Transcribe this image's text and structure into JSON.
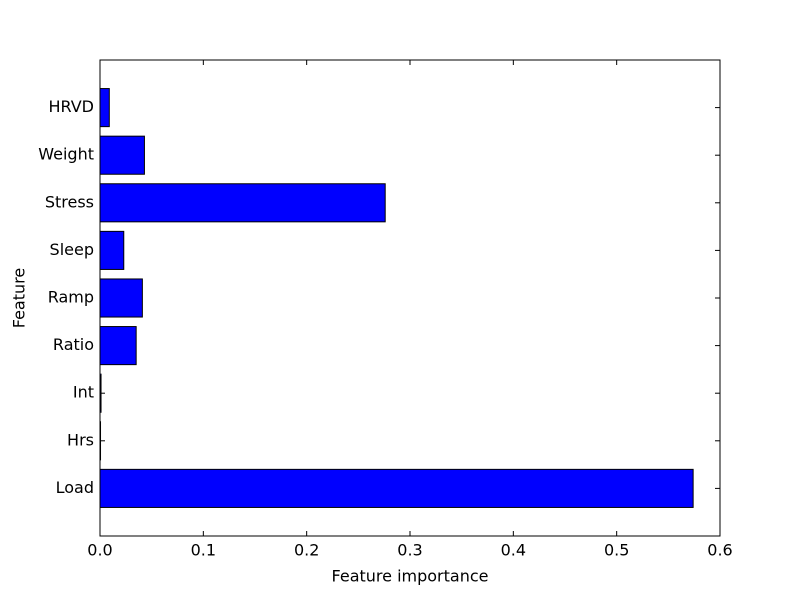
{
  "chart_data": {
    "type": "barh",
    "xlabel": "Feature importance",
    "ylabel": "Feature",
    "categories": [
      "Load",
      "Hrs",
      "Int",
      "Ratio",
      "Ramp",
      "Sleep",
      "Stress",
      "Weight",
      "HRVD"
    ],
    "values": [
      0.574,
      0.0005,
      0.001,
      0.035,
      0.041,
      0.023,
      0.276,
      0.043,
      0.009
    ],
    "color": "#0000ff",
    "xlim": [
      0,
      0.6
    ],
    "xticks": [
      {
        "value": 0,
        "label": "0.0"
      },
      0.1,
      0.2,
      0.3,
      0.4,
      0.5,
      0.6
    ]
  }
}
